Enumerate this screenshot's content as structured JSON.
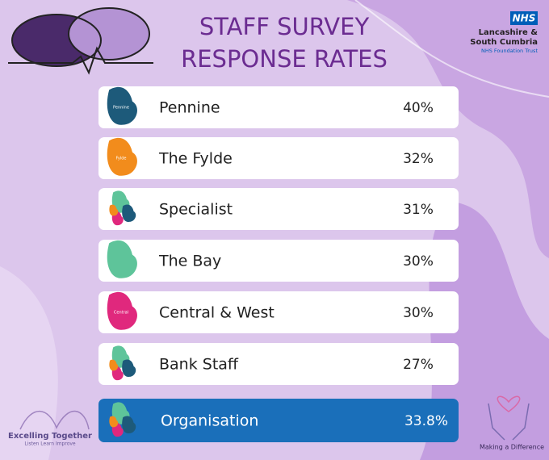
{
  "header": {
    "title_line1": "STAFF SURVEY",
    "title_line2": "RESPONSE RATES"
  },
  "logo": {
    "badge": "NHS",
    "line1": "Lancashire &",
    "line2": "South Cumbria",
    "line3": "NHS Foundation Trust"
  },
  "rows": [
    {
      "label": "Pennine",
      "value": "40%",
      "map_label": "Pennine"
    },
    {
      "label": "The Fylde",
      "value": "32%",
      "map_label": "Fylde"
    },
    {
      "label": "Specialist",
      "value": "31%"
    },
    {
      "label": "The Bay",
      "value": "30%"
    },
    {
      "label": "Central & West",
      "value": "30%",
      "map_label": "Central"
    },
    {
      "label": "Bank Staff",
      "value": "27%"
    },
    {
      "label": "Organisation",
      "value": "33.8%"
    }
  ],
  "footer": {
    "left_title": "Excelling Together",
    "left_sub": "Listen Learn Improve",
    "right": "Making a Difference"
  }
}
